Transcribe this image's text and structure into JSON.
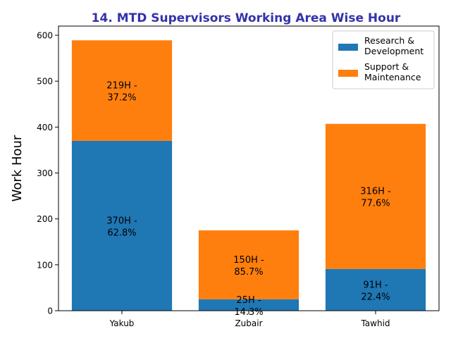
{
  "chart_data": {
    "type": "bar",
    "stacked": true,
    "title": "14. MTD Supervisors Working Area Wise Hour",
    "title_color": "#3333aa",
    "xlabel": "",
    "ylabel": "Work Hour",
    "ylim": [
      0,
      620
    ],
    "yticks": [
      0,
      100,
      200,
      300,
      400,
      500,
      600
    ],
    "categories": [
      "Yakub",
      "Zubair",
      "Tawhid"
    ],
    "series": [
      {
        "name": "Research & Development",
        "legend_lines": [
          "Research &",
          "Development"
        ],
        "color": "#1f77b4",
        "values": [
          370,
          25,
          91
        ],
        "labels": [
          [
            "370H -",
            "62.8%"
          ],
          [
            "25H -",
            "14.3%"
          ],
          [
            "91H -",
            "22.4%"
          ]
        ]
      },
      {
        "name": "Support & Maintenance",
        "legend_lines": [
          "Support &",
          "Maintenance"
        ],
        "color": "#ff7f0e",
        "values": [
          219,
          150,
          316
        ],
        "labels": [
          [
            "219H -",
            "37.2%"
          ],
          [
            "150H -",
            "85.7%"
          ],
          [
            "316H -",
            "77.6%"
          ]
        ]
      }
    ],
    "grid": false,
    "legend_position": "top-right"
  }
}
